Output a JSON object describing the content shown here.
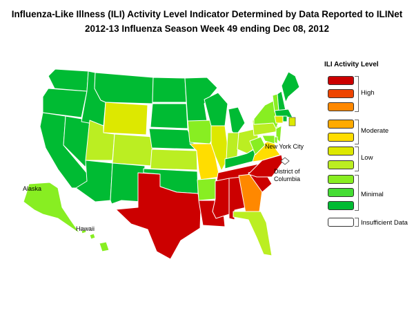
{
  "title_line1": "Influenza-Like Illness (ILI) Activity Level Indicator Determined by Data Reported to ILINet",
  "title_line2": "2012-13  Influenza Season Week  49 ending Dec 08, 2012",
  "legend": {
    "title": "ILI Activity Level",
    "levels": [
      {
        "level": 10,
        "color": "#cc0000"
      },
      {
        "level": 9,
        "color": "#ee4400"
      },
      {
        "level": 8,
        "color": "#ff8800"
      },
      {
        "level": 7,
        "color": "#ffaa00"
      },
      {
        "level": 6,
        "color": "#ffdd00"
      },
      {
        "level": 5,
        "color": "#dde800"
      },
      {
        "level": 4,
        "color": "#bbee22"
      },
      {
        "level": 3,
        "color": "#88ee22"
      },
      {
        "level": 2,
        "color": "#44dd33"
      },
      {
        "level": 1,
        "color": "#00bb33"
      },
      {
        "level": 0,
        "color": "#ffffff"
      }
    ],
    "groups": {
      "high": "High",
      "moderate": "Moderate",
      "low": "Low",
      "minimal": "Minimal",
      "insufficient": "Insufficient Data"
    }
  },
  "map_labels": {
    "nyc": "New York City",
    "dc_line1": "District of",
    "dc_line2": "Columbia",
    "alaska": "Alaska",
    "hawaii": "Hawaii"
  },
  "state_levels": {
    "WA": 1,
    "OR": 1,
    "CA": 1,
    "NV": 1,
    "ID": 1,
    "MT": 1,
    "WY": 5,
    "UT": 4,
    "CO": 4,
    "AZ": 1,
    "NM": 1,
    "ND": 1,
    "SD": 1,
    "NE": 1,
    "KS": 4,
    "OK": 1,
    "TX": 10,
    "MN": 1,
    "IA": 3,
    "MO": 6,
    "AR": 3,
    "LA": 10,
    "WI": 1,
    "IL": 5,
    "MI": 1,
    "IN": 4,
    "OH": 4,
    "KY": 1,
    "TN": 10,
    "MS": 10,
    "AL": 10,
    "GA": 8,
    "FL": 4,
    "SC": 10,
    "NC": 10,
    "VA": 6,
    "WV": 3,
    "PA": 4,
    "NY": 3,
    "ME": 1,
    "NH": 1,
    "VT": 3,
    "MA": 1,
    "CT": 5,
    "RI": 1,
    "NJ": 3,
    "DE": 3,
    "MD": 3,
    "AK": 3,
    "HI": 3,
    "NYC": 5,
    "DC": 0
  }
}
